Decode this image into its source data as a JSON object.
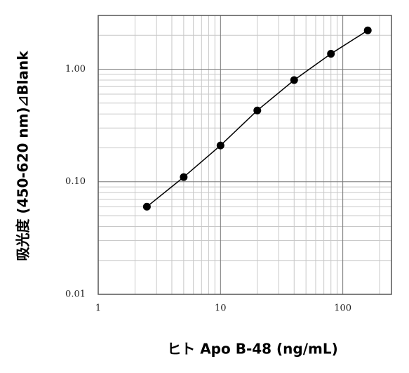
{
  "chart_data": {
    "type": "line",
    "x_label": "ヒト Apo B-48 (ng/mL)",
    "y_label": "吸光度 (450-620 nm)⊿Blank",
    "x": [
      2.5,
      5,
      10,
      20,
      40,
      80,
      160
    ],
    "values": [
      0.06,
      0.11,
      0.21,
      0.43,
      0.8,
      1.37,
      2.21
    ],
    "color": "#000000",
    "xscale": "log",
    "yscale": "log",
    "xlim": [
      1,
      250
    ],
    "ylim": [
      0.01,
      3
    ],
    "xticks": [
      1,
      10,
      100
    ],
    "yticks": [
      0.01,
      {
        "value": 0.1,
        "label": "0.10"
      },
      {
        "value": 1,
        "label": "1.00"
      }
    ],
    "xminorticks": [
      2,
      3,
      4,
      5,
      6,
      7,
      8,
      9,
      20,
      30,
      40,
      50,
      60,
      70,
      80,
      90,
      200
    ],
    "yminorticks": [
      0.02,
      0.03,
      0.04,
      0.05,
      0.06,
      0.07,
      0.08,
      0.09,
      0.2,
      0.3,
      0.4,
      0.5,
      0.6,
      0.7,
      0.8,
      0.9,
      2,
      3
    ],
    "grid": true,
    "markers": true
  }
}
